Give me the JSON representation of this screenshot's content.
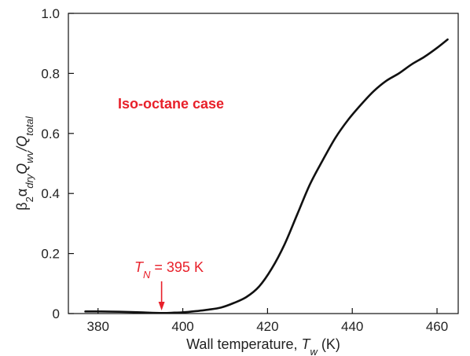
{
  "chart_data": {
    "type": "line",
    "title": "",
    "xlabel": {
      "prefix": "Wall temperature, ",
      "var": "T",
      "sub": "w",
      "suffix": " (K)"
    },
    "ylabel": {
      "p1": "β",
      "s1": "2",
      "p2": "α",
      "s2": "dry",
      "p3": "Q",
      "s3": "wv",
      "p4": "/Q",
      "s4": "total"
    },
    "xlim": [
      373,
      465
    ],
    "ylim": [
      0,
      1.0
    ],
    "xticks": [
      380,
      400,
      420,
      440,
      460
    ],
    "yticks": [
      0,
      0.2,
      0.4,
      0.6,
      0.8,
      1.0
    ],
    "ytick_labels": [
      "0",
      "0.2",
      "0.4",
      "0.6",
      "0.8",
      "1.0"
    ],
    "grid": false,
    "line_color": "#111111",
    "annotation_color": "#e8202a",
    "series": [
      {
        "x": [
          377,
          380,
          385,
          390,
          395,
          398,
          400,
          403,
          406,
          409,
          412,
          415,
          418,
          421,
          424,
          427,
          430,
          433,
          436,
          439,
          442,
          445,
          448,
          451,
          454,
          457,
          460,
          462.5
        ],
        "y": [
          0.007,
          0.007,
          0.006,
          0.004,
          0.002,
          0.003,
          0.004,
          0.008,
          0.013,
          0.02,
          0.035,
          0.055,
          0.09,
          0.15,
          0.23,
          0.33,
          0.43,
          0.51,
          0.585,
          0.645,
          0.695,
          0.74,
          0.775,
          0.8,
          0.83,
          0.855,
          0.885,
          0.913
        ]
      }
    ],
    "annotations": {
      "case_label": "Iso-octane case",
      "tn_var": "T",
      "tn_sub": "N",
      "tn_rest": " = 395 K",
      "tn_x": 395
    }
  }
}
